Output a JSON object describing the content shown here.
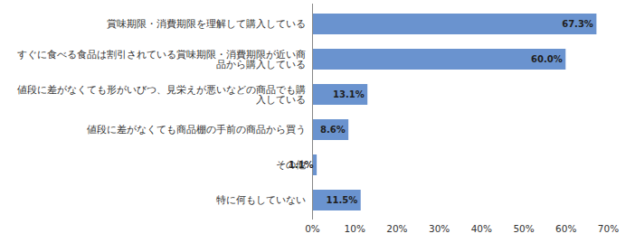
{
  "chart_data": {
    "type": "bar",
    "orientation": "horizontal",
    "categories": [
      "賞味期限・消費期限を理解して購入している",
      "すぐに食べる食品は割引されている賞味期限・消費期限が近い商品から購入している",
      "値段に差がなくても形がいびつ、見栄えが悪いなどの商品でも購入している",
      "値段に差がなくても商品棚の手前の商品から買う",
      "その他",
      "特に何もしていない"
    ],
    "values": [
      67.3,
      60.0,
      13.1,
      8.6,
      1.1,
      11.5
    ],
    "value_labels": [
      "67.3%",
      "60.0%",
      "13.1%",
      "8.6%",
      "1.1%",
      "11.5%"
    ],
    "data_labels": true,
    "color": "#6a93cf",
    "grid": false,
    "xlim": [
      0,
      70
    ],
    "xticks": [
      {
        "value": 0,
        "label": "0%"
      },
      {
        "value": 10,
        "label": "10%"
      },
      {
        "value": 20,
        "label": "20%"
      },
      {
        "value": 30,
        "label": "30%"
      },
      {
        "value": 40,
        "label": "40%"
      },
      {
        "value": 50,
        "label": "50%"
      },
      {
        "value": 60,
        "label": "60%"
      },
      {
        "value": 70,
        "label": "70%"
      }
    ]
  }
}
